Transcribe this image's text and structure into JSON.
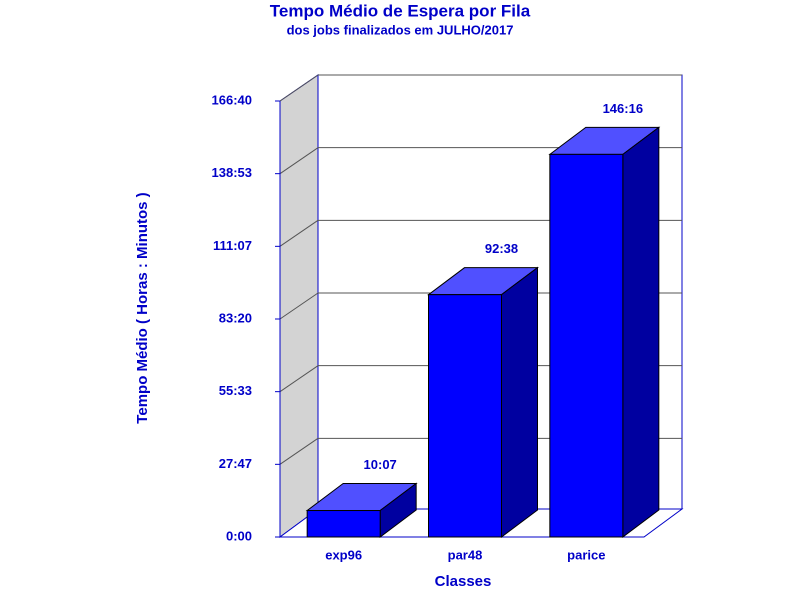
{
  "chart_data": {
    "type": "bar3d",
    "title": "Tempo Médio de Espera por Fila",
    "subtitle": "dos jobs finalizados em JULHO/2017",
    "y_label": "Tempo Médio ( Horas : Minutos )",
    "x_label": "Classes",
    "categories": [
      "exp96",
      "par48",
      "parice"
    ],
    "values": [
      607,
      5558,
      8776
    ],
    "value_labels": [
      "10:07",
      "92:38",
      "146:16"
    ],
    "color": "#0000ff",
    "ylim": [
      0,
      10000
    ],
    "yticks": [
      {
        "value": 0,
        "label": "0:00"
      },
      {
        "value": 1666.67,
        "label": "27:47"
      },
      {
        "value": 3333.33,
        "label": "55:33"
      },
      {
        "value": 5000,
        "label": "83:20"
      },
      {
        "value": 6666.67,
        "label": "111:07"
      },
      {
        "value": 8333.33,
        "label": "138:53"
      },
      {
        "value": 10000,
        "label": "166:40"
      }
    ],
    "grid": true
  }
}
